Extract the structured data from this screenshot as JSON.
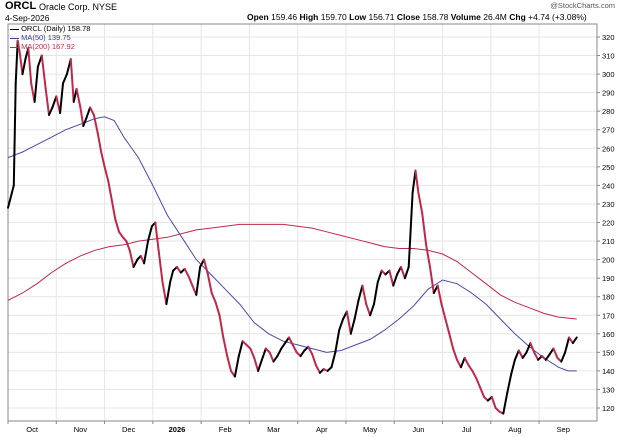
{
  "header": {
    "symbol": "ORCL",
    "company": "Oracle Corp.",
    "exchange": "NYSE",
    "date": "4-Sep-2026",
    "watermark": "@StockCharts.com",
    "quote": {
      "open_label": "Open",
      "open": "159.46",
      "high_label": "High",
      "high": "159.70",
      "low_label": "Low",
      "low": "156.71",
      "close_label": "Close",
      "close": "158.78",
      "volume_label": "Volume",
      "volume": "26.4M",
      "chg_label": "Chg",
      "chg": "+4.74 (+3.08%)"
    }
  },
  "legend": [
    {
      "label": "ORCL (Daily) 158.78",
      "color": "#000000"
    },
    {
      "label": "MA(50) 139.75",
      "color": "#3a3a9e"
    },
    {
      "label": "MA(200) 167.92",
      "color": "#c0284a"
    }
  ],
  "colors": {
    "up": "#000000",
    "down": "#c0284a",
    "ma50": "#4a4aaa",
    "ma200": "#c0284a",
    "grid": "#e6e6e6"
  },
  "chart_data": {
    "type": "line",
    "y_ticks": [
      "120",
      "130",
      "140",
      "150",
      "160",
      "170",
      "180",
      "190",
      "200",
      "210",
      "220",
      "230",
      "240",
      "250",
      "260",
      "270",
      "280",
      "290",
      "300",
      "310",
      "320"
    ],
    "x_ticks": [
      {
        "label": "Oct",
        "month": 1
      },
      {
        "label": "Nov",
        "month": 2
      },
      {
        "label": "Dec",
        "month": 3
      },
      {
        "label": "2026",
        "month": 4,
        "bold": true
      },
      {
        "label": "Feb",
        "month": 5
      },
      {
        "label": "Mar",
        "month": 6
      },
      {
        "label": "Apr",
        "month": 7
      },
      {
        "label": "May",
        "month": 8
      },
      {
        "label": "Jun",
        "month": 9
      },
      {
        "label": "Jul",
        "month": 10
      },
      {
        "label": "Aug",
        "month": 11
      },
      {
        "label": "Sep",
        "month": 12
      }
    ],
    "ylim": [
      113,
      327
    ],
    "xlim": [
      0,
      12.2
    ],
    "price": {
      "name": "ORCL (Daily)",
      "points": [
        [
          0.0,
          228
        ],
        [
          0.08,
          236
        ],
        [
          0.12,
          240
        ],
        [
          0.16,
          295
        ],
        [
          0.2,
          318
        ],
        [
          0.24,
          312
        ],
        [
          0.3,
          300
        ],
        [
          0.36,
          308
        ],
        [
          0.42,
          314
        ],
        [
          0.48,
          295
        ],
        [
          0.55,
          285
        ],
        [
          0.62,
          304
        ],
        [
          0.7,
          310
        ],
        [
          0.78,
          292
        ],
        [
          0.85,
          278
        ],
        [
          0.92,
          282
        ],
        [
          1.0,
          288
        ],
        [
          1.08,
          279
        ],
        [
          1.14,
          295
        ],
        [
          1.22,
          300
        ],
        [
          1.3,
          308
        ],
        [
          1.36,
          285
        ],
        [
          1.42,
          292
        ],
        [
          1.5,
          282
        ],
        [
          1.56,
          272
        ],
        [
          1.62,
          276
        ],
        [
          1.7,
          282
        ],
        [
          1.78,
          278
        ],
        [
          1.86,
          268
        ],
        [
          1.93,
          258
        ],
        [
          2.0,
          250
        ],
        [
          2.08,
          242
        ],
        [
          2.15,
          232
        ],
        [
          2.22,
          222
        ],
        [
          2.3,
          215
        ],
        [
          2.38,
          212
        ],
        [
          2.45,
          210
        ],
        [
          2.52,
          205
        ],
        [
          2.6,
          196
        ],
        [
          2.68,
          200
        ],
        [
          2.75,
          202
        ],
        [
          2.82,
          198
        ],
        [
          2.9,
          210
        ],
        [
          2.98,
          218
        ],
        [
          3.05,
          220
        ],
        [
          3.12,
          205
        ],
        [
          3.2,
          188
        ],
        [
          3.28,
          176
        ],
        [
          3.36,
          188
        ],
        [
          3.42,
          194
        ],
        [
          3.5,
          196
        ],
        [
          3.58,
          193
        ],
        [
          3.66,
          195
        ],
        [
          3.74,
          191
        ],
        [
          3.82,
          186
        ],
        [
          3.9,
          181
        ],
        [
          3.98,
          196
        ],
        [
          4.06,
          200
        ],
        [
          4.14,
          192
        ],
        [
          4.22,
          182
        ],
        [
          4.3,
          177
        ],
        [
          4.38,
          170
        ],
        [
          4.46,
          158
        ],
        [
          4.54,
          148
        ],
        [
          4.62,
          140
        ],
        [
          4.7,
          137
        ],
        [
          4.78,
          148
        ],
        [
          4.86,
          156
        ],
        [
          4.94,
          154
        ],
        [
          5.02,
          152
        ],
        [
          5.1,
          147
        ],
        [
          5.18,
          140
        ],
        [
          5.26,
          146
        ],
        [
          5.34,
          152
        ],
        [
          5.42,
          150
        ],
        [
          5.5,
          145
        ],
        [
          5.58,
          148
        ],
        [
          5.66,
          152
        ],
        [
          5.74,
          155
        ],
        [
          5.82,
          158
        ],
        [
          5.9,
          154
        ],
        [
          5.98,
          150
        ],
        [
          6.06,
          148
        ],
        [
          6.14,
          151
        ],
        [
          6.22,
          153
        ],
        [
          6.3,
          149
        ],
        [
          6.38,
          143
        ],
        [
          6.46,
          139
        ],
        [
          6.54,
          141
        ],
        [
          6.62,
          140
        ],
        [
          6.7,
          142
        ],
        [
          6.78,
          150
        ],
        [
          6.86,
          162
        ],
        [
          6.94,
          168
        ],
        [
          7.02,
          172
        ],
        [
          7.1,
          160
        ],
        [
          7.18,
          168
        ],
        [
          7.26,
          178
        ],
        [
          7.34,
          186
        ],
        [
          7.42,
          176
        ],
        [
          7.5,
          170
        ],
        [
          7.58,
          176
        ],
        [
          7.66,
          188
        ],
        [
          7.74,
          194
        ],
        [
          7.82,
          192
        ],
        [
          7.9,
          194
        ],
        [
          7.98,
          186
        ],
        [
          8.06,
          192
        ],
        [
          8.14,
          196
        ],
        [
          8.22,
          190
        ],
        [
          8.3,
          196
        ],
        [
          8.38,
          236
        ],
        [
          8.44,
          248
        ],
        [
          8.5,
          236
        ],
        [
          8.58,
          225
        ],
        [
          8.66,
          208
        ],
        [
          8.74,
          196
        ],
        [
          8.82,
          182
        ],
        [
          8.9,
          186
        ],
        [
          8.98,
          176
        ],
        [
          9.06,
          168
        ],
        [
          9.14,
          160
        ],
        [
          9.22,
          152
        ],
        [
          9.3,
          146
        ],
        [
          9.38,
          142
        ],
        [
          9.46,
          147
        ],
        [
          9.54,
          143
        ],
        [
          9.62,
          140
        ],
        [
          9.7,
          136
        ],
        [
          9.78,
          131
        ],
        [
          9.86,
          126
        ],
        [
          9.94,
          124
        ],
        [
          10.02,
          126
        ],
        [
          10.1,
          120
        ],
        [
          10.18,
          118
        ],
        [
          10.26,
          117
        ],
        [
          10.34,
          128
        ],
        [
          10.42,
          138
        ],
        [
          10.5,
          146
        ],
        [
          10.58,
          151
        ],
        [
          10.66,
          147
        ],
        [
          10.74,
          150
        ],
        [
          10.82,
          155
        ],
        [
          10.9,
          150
        ],
        [
          10.98,
          146
        ],
        [
          11.06,
          148
        ],
        [
          11.14,
          146
        ],
        [
          11.22,
          149
        ],
        [
          11.3,
          152
        ],
        [
          11.38,
          147
        ],
        [
          11.46,
          145
        ],
        [
          11.54,
          150
        ],
        [
          11.62,
          158
        ],
        [
          11.7,
          155
        ],
        [
          11.78,
          158
        ]
      ]
    },
    "ma50": {
      "name": "MA(50)",
      "points": [
        [
          0.0,
          255
        ],
        [
          0.3,
          258
        ],
        [
          0.6,
          262
        ],
        [
          0.9,
          266
        ],
        [
          1.2,
          270
        ],
        [
          1.5,
          273
        ],
        [
          1.8,
          276
        ],
        [
          2.0,
          277
        ],
        [
          2.2,
          275
        ],
        [
          2.4,
          266
        ],
        [
          2.7,
          255
        ],
        [
          3.0,
          240
        ],
        [
          3.3,
          224
        ],
        [
          3.6,
          212
        ],
        [
          3.9,
          200
        ],
        [
          4.2,
          192
        ],
        [
          4.5,
          184
        ],
        [
          4.8,
          176
        ],
        [
          5.1,
          166
        ],
        [
          5.4,
          160
        ],
        [
          5.7,
          156
        ],
        [
          6.0,
          154
        ],
        [
          6.3,
          152
        ],
        [
          6.6,
          150
        ],
        [
          6.9,
          151
        ],
        [
          7.2,
          154
        ],
        [
          7.5,
          157
        ],
        [
          7.8,
          162
        ],
        [
          8.1,
          168
        ],
        [
          8.4,
          175
        ],
        [
          8.7,
          184
        ],
        [
          9.0,
          189
        ],
        [
          9.3,
          187
        ],
        [
          9.6,
          182
        ],
        [
          9.9,
          176
        ],
        [
          10.2,
          168
        ],
        [
          10.5,
          160
        ],
        [
          10.8,
          153
        ],
        [
          11.1,
          147
        ],
        [
          11.4,
          142
        ],
        [
          11.6,
          140
        ],
        [
          11.78,
          140
        ]
      ]
    },
    "ma200": {
      "name": "MA(200)",
      "points": [
        [
          0.0,
          178
        ],
        [
          0.3,
          182
        ],
        [
          0.6,
          187
        ],
        [
          0.9,
          193
        ],
        [
          1.2,
          198
        ],
        [
          1.5,
          202
        ],
        [
          1.8,
          205
        ],
        [
          2.1,
          207
        ],
        [
          2.4,
          208
        ],
        [
          2.7,
          210
        ],
        [
          3.0,
          211
        ],
        [
          3.3,
          212
        ],
        [
          3.6,
          214
        ],
        [
          3.9,
          216
        ],
        [
          4.2,
          217
        ],
        [
          4.5,
          218
        ],
        [
          4.8,
          219
        ],
        [
          5.1,
          219
        ],
        [
          5.4,
          219
        ],
        [
          5.7,
          219
        ],
        [
          6.0,
          218
        ],
        [
          6.3,
          217
        ],
        [
          6.6,
          215
        ],
        [
          6.9,
          213
        ],
        [
          7.2,
          211
        ],
        [
          7.5,
          209
        ],
        [
          7.8,
          207
        ],
        [
          8.1,
          206
        ],
        [
          8.4,
          206
        ],
        [
          8.7,
          205
        ],
        [
          9.0,
          203
        ],
        [
          9.3,
          199
        ],
        [
          9.6,
          193
        ],
        [
          9.9,
          187
        ],
        [
          10.2,
          181
        ],
        [
          10.5,
          177
        ],
        [
          10.8,
          174
        ],
        [
          11.1,
          171
        ],
        [
          11.4,
          169
        ],
        [
          11.78,
          168
        ]
      ]
    }
  }
}
